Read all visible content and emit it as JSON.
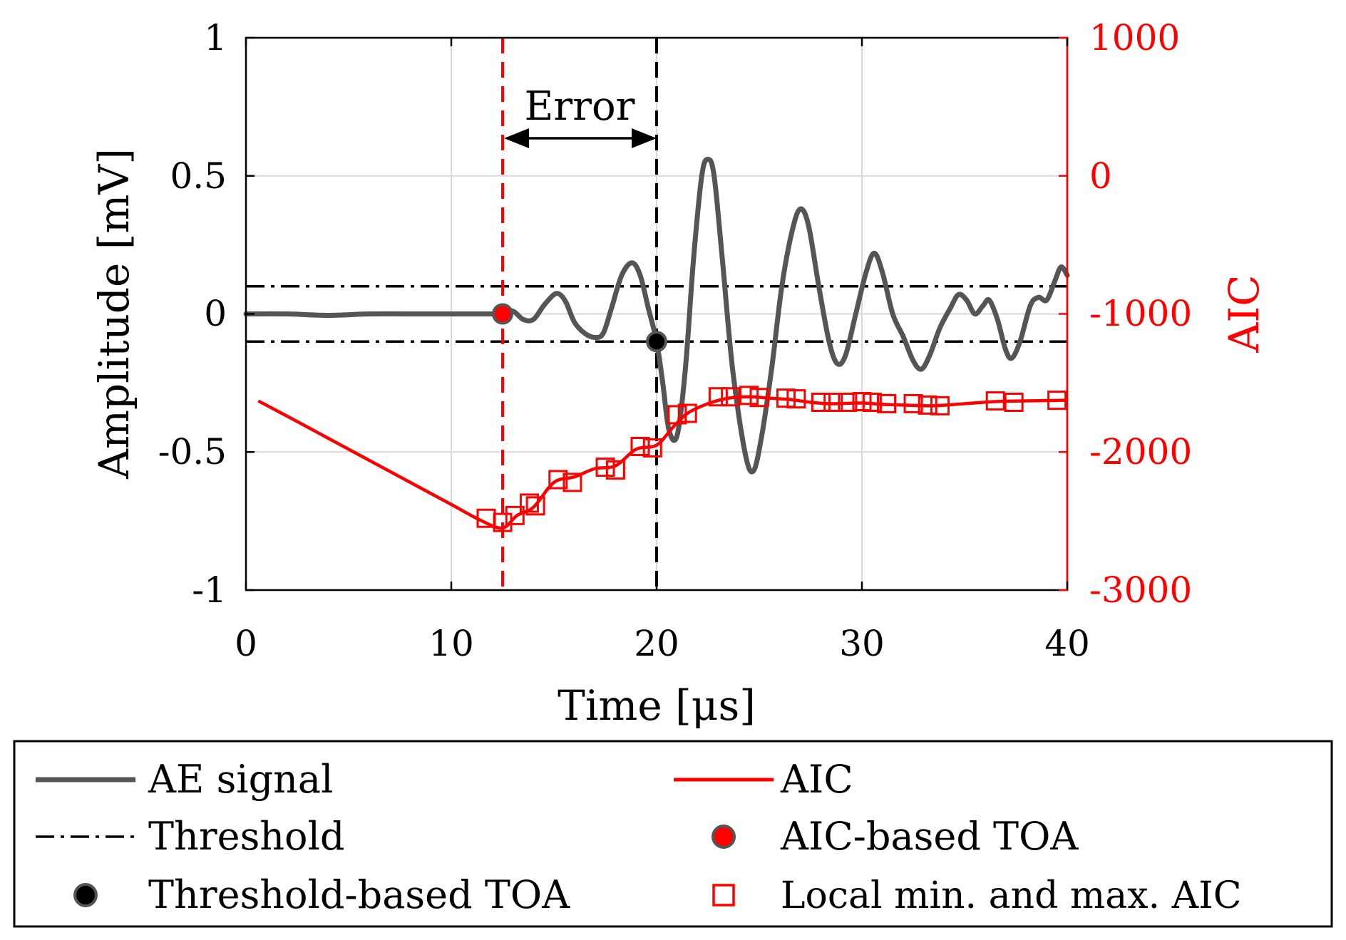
{
  "chart_data": {
    "type": "line",
    "x_axis": {
      "label": "Time [μs]",
      "range": [
        0,
        40
      ],
      "ticks": [
        0,
        10,
        20,
        30,
        40
      ],
      "tick_labels": [
        "0",
        "10",
        "20",
        "30",
        "40"
      ],
      "grid": true
    },
    "y_axis_left": {
      "label": "Amplitude [mV]",
      "range": [
        -1,
        1
      ],
      "ticks": [
        -1,
        -0.5,
        0,
        0.5,
        1
      ],
      "tick_labels": [
        "-1",
        "-0.5",
        "0",
        "0.5",
        "1"
      ],
      "grid": true
    },
    "y_axis_right": {
      "label": "AIC",
      "range": [
        -3000,
        1000
      ],
      "ticks": [
        -3000,
        -2000,
        -1000,
        0,
        1000
      ],
      "tick_labels": [
        "-3000",
        "-2000",
        "-1000",
        "0",
        "1000"
      ],
      "color": "#ff0000"
    },
    "series": [
      {
        "name": "AE signal",
        "axis": "left",
        "color": "#555555",
        "points": [
          [
            0,
            0
          ],
          [
            2,
            0
          ],
          [
            4,
            -0.005
          ],
          [
            6,
            0
          ],
          [
            8,
            0
          ],
          [
            10,
            0
          ],
          [
            11,
            0
          ],
          [
            12,
            0
          ],
          [
            12.5,
            0
          ],
          [
            13,
            0.01
          ],
          [
            13.5,
            -0.02
          ],
          [
            14,
            -0.02
          ],
          [
            14.5,
            0.03
          ],
          [
            15,
            0.07
          ],
          [
            15.3,
            0.07
          ],
          [
            15.6,
            0.04
          ],
          [
            16,
            -0.03
          ],
          [
            16.5,
            -0.07
          ],
          [
            17,
            -0.085
          ],
          [
            17.4,
            -0.07
          ],
          [
            17.8,
            0.02
          ],
          [
            18.3,
            0.14
          ],
          [
            18.8,
            0.185
          ],
          [
            19.2,
            0.14
          ],
          [
            19.6,
            0.02
          ],
          [
            20,
            -0.1
          ],
          [
            20.3,
            -0.25
          ],
          [
            20.6,
            -0.42
          ],
          [
            21,
            -0.44
          ],
          [
            21.4,
            -0.2
          ],
          [
            21.8,
            0.2
          ],
          [
            22.2,
            0.5
          ],
          [
            22.5,
            0.56
          ],
          [
            22.8,
            0.5
          ],
          [
            23.2,
            0.2
          ],
          [
            23.7,
            -0.2
          ],
          [
            24.3,
            -0.5
          ],
          [
            24.7,
            -0.57
          ],
          [
            25.1,
            -0.45
          ],
          [
            25.6,
            -0.2
          ],
          [
            26.1,
            0.1
          ],
          [
            26.6,
            0.3
          ],
          [
            27,
            0.38
          ],
          [
            27.4,
            0.32
          ],
          [
            27.9,
            0.1
          ],
          [
            28.4,
            -0.1
          ],
          [
            28.8,
            -0.18
          ],
          [
            29.2,
            -0.15
          ],
          [
            29.7,
            0
          ],
          [
            30.2,
            0.15
          ],
          [
            30.6,
            0.22
          ],
          [
            31,
            0.15
          ],
          [
            31.5,
            0
          ],
          [
            32,
            -0.08
          ],
          [
            32.5,
            -0.17
          ],
          [
            32.9,
            -0.2
          ],
          [
            33.3,
            -0.15
          ],
          [
            33.8,
            -0.05
          ],
          [
            34.3,
            0.02
          ],
          [
            34.7,
            0.07
          ],
          [
            35.1,
            0.05
          ],
          [
            35.5,
            0
          ],
          [
            35.9,
            0.03
          ],
          [
            36.2,
            0.05
          ],
          [
            36.6,
            -0.02
          ],
          [
            37,
            -0.13
          ],
          [
            37.3,
            -0.16
          ],
          [
            37.7,
            -0.1
          ],
          [
            38.2,
            0.03
          ],
          [
            38.6,
            0.06
          ],
          [
            39,
            0.05
          ],
          [
            39.4,
            0.12
          ],
          [
            39.7,
            0.17
          ],
          [
            40,
            0.14
          ]
        ]
      },
      {
        "name": "AIC",
        "axis": "right",
        "color": "#ff0000",
        "points": [
          [
            0.6,
            -1630
          ],
          [
            2,
            -1740
          ],
          [
            4,
            -1900
          ],
          [
            6,
            -2060
          ],
          [
            8,
            -2220
          ],
          [
            10,
            -2380
          ],
          [
            11.5,
            -2500
          ],
          [
            12.5,
            -2550
          ],
          [
            13.2,
            -2460
          ],
          [
            14,
            -2400
          ],
          [
            15,
            -2220
          ],
          [
            16,
            -2180
          ],
          [
            17,
            -2120
          ],
          [
            18,
            -2100
          ],
          [
            19,
            -1980
          ],
          [
            20,
            -1950
          ],
          [
            20.8,
            -1820
          ],
          [
            21.5,
            -1720
          ],
          [
            22.5,
            -1650
          ],
          [
            23.5,
            -1610
          ],
          [
            24.5,
            -1600
          ],
          [
            25.5,
            -1610
          ],
          [
            26.5,
            -1620
          ],
          [
            27.5,
            -1640
          ],
          [
            28.5,
            -1650
          ],
          [
            30,
            -1645
          ],
          [
            31,
            -1655
          ],
          [
            32,
            -1660
          ],
          [
            33.5,
            -1665
          ],
          [
            35,
            -1650
          ],
          [
            36.5,
            -1635
          ],
          [
            38,
            -1630
          ],
          [
            40,
            -1625
          ]
        ]
      },
      {
        "name": "Local min. and max. AIC",
        "axis": "right",
        "marker": "square",
        "color": "#ff0000",
        "points": [
          [
            11.7,
            -2480
          ],
          [
            12.5,
            -2510
          ],
          [
            13.1,
            -2460
          ],
          [
            13.8,
            -2370
          ],
          [
            14.1,
            -2390
          ],
          [
            15.2,
            -2200
          ],
          [
            15.9,
            -2220
          ],
          [
            17.5,
            -2110
          ],
          [
            18,
            -2130
          ],
          [
            19.2,
            -1960
          ],
          [
            19.8,
            -1970
          ],
          [
            21,
            -1730
          ],
          [
            21.5,
            -1720
          ],
          [
            23,
            -1600
          ],
          [
            23.6,
            -1600
          ],
          [
            24.5,
            -1590
          ],
          [
            25,
            -1605
          ],
          [
            26.3,
            -1610
          ],
          [
            26.8,
            -1615
          ],
          [
            28,
            -1640
          ],
          [
            28.6,
            -1640
          ],
          [
            29.3,
            -1640
          ],
          [
            30,
            -1635
          ],
          [
            30.5,
            -1640
          ],
          [
            31.2,
            -1650
          ],
          [
            32.5,
            -1650
          ],
          [
            33.2,
            -1660
          ],
          [
            33.8,
            -1665
          ],
          [
            36.5,
            -1630
          ],
          [
            37.4,
            -1640
          ],
          [
            39.5,
            -1625
          ]
        ]
      },
      {
        "name": "Threshold",
        "axis": "left",
        "style": "dash-dot",
        "color": "#000000",
        "values": [
          0.1,
          -0.1
        ]
      },
      {
        "name": "Threshold-based TOA",
        "axis": "left",
        "marker": "circle",
        "color": "#000000",
        "points": [
          [
            20,
            -0.1
          ]
        ]
      },
      {
        "name": "AIC-based TOA",
        "axis": "left",
        "marker": "circle",
        "color": "#ff0000",
        "points": [
          [
            12.5,
            0
          ]
        ]
      }
    ],
    "vertical_lines": [
      {
        "x": 12.5,
        "color": "#ff0000",
        "style": "dashed"
      },
      {
        "x": 20,
        "color": "#000000",
        "style": "dashed"
      }
    ],
    "annotations": [
      {
        "text": "Error",
        "from_x": 12.5,
        "to_x": 20,
        "arrow": "double",
        "y": 0.64
      }
    ],
    "legend": {
      "placement": "bottom",
      "entries": [
        {
          "label": "AE signal"
        },
        {
          "label": "AIC"
        },
        {
          "label": "Threshold"
        },
        {
          "label": "AIC-based TOA"
        },
        {
          "label": "Threshold-based TOA"
        },
        {
          "label": "Local min. and max. AIC"
        }
      ]
    }
  }
}
